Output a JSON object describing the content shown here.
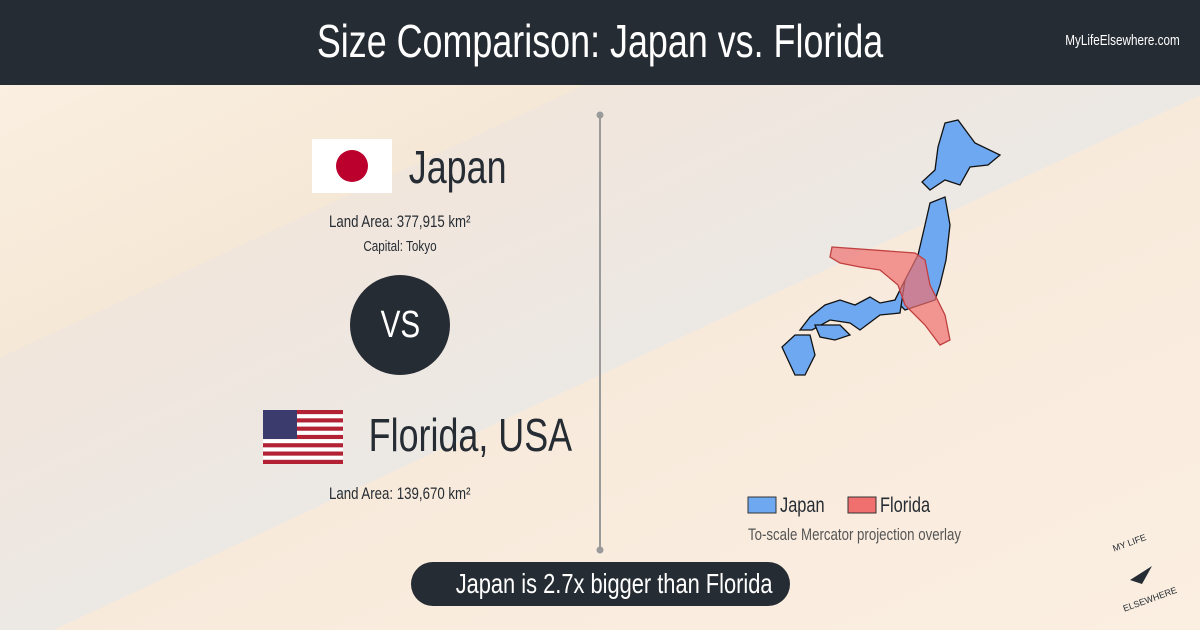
{
  "header": {
    "title": "Size Comparison: Japan vs. Florida",
    "site": "MyLifeElsewhere.com"
  },
  "japan": {
    "name": "Japan",
    "land_area_label": "Land Area:",
    "land_area": "377,915 km²",
    "capital_label": "Capital:",
    "capital": "Tokyo"
  },
  "vs": "VS",
  "florida": {
    "name": "Florida, USA",
    "land_area_label": "Land Area:",
    "land_area": "139,670 km²"
  },
  "legend": {
    "items": [
      "Japan",
      "Florida"
    ],
    "note": "To-scale Mercator projection overlay"
  },
  "summary": "Japan is 2.7x bigger than Florida",
  "logo": {
    "top": "MY LIFE",
    "bottom": "ELSEWHERE"
  }
}
